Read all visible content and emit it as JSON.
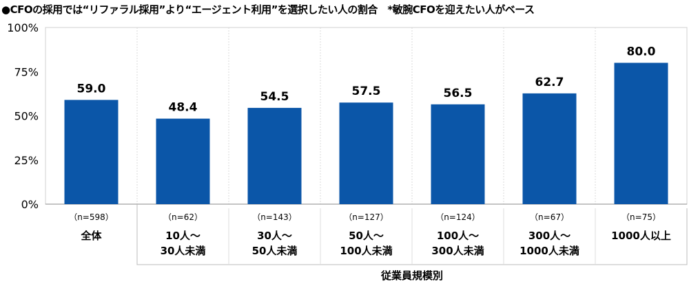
{
  "chart_data": {
    "type": "bar",
    "title": "●CFOの採用では“リファラル採用”より“エージェント利用”を選択したい人の割合　*敏腕CFOを迎えたい人がベース",
    "categories": [
      {
        "n": "（n=598）",
        "label": [
          "全体"
        ]
      },
      {
        "n": "（n=62）",
        "label": [
          "10人～",
          "30人未満"
        ]
      },
      {
        "n": "（n=143）",
        "label": [
          "30人～",
          "50人未満"
        ]
      },
      {
        "n": "（n=127）",
        "label": [
          "50人～",
          "100人未満"
        ]
      },
      {
        "n": "（n=124）",
        "label": [
          "100人～",
          "300人未満"
        ]
      },
      {
        "n": "（n=67）",
        "label": [
          "300人～",
          "1000人未満"
        ]
      },
      {
        "n": "（n=75）",
        "label": [
          "1000人以上"
        ]
      }
    ],
    "values": [
      59.0,
      48.4,
      54.5,
      57.5,
      56.5,
      62.7,
      80.0
    ],
    "data_labels": [
      "59.0",
      "48.4",
      "54.5",
      "57.5",
      "56.5",
      "62.7",
      "80.0"
    ],
    "yticks": [
      "0%",
      "25%",
      "50%",
      "75%",
      "100%"
    ],
    "ylim": [
      0,
      100
    ],
    "group_label": "従業員規模別",
    "grid": false,
    "bar_color": "#0b56a8"
  }
}
